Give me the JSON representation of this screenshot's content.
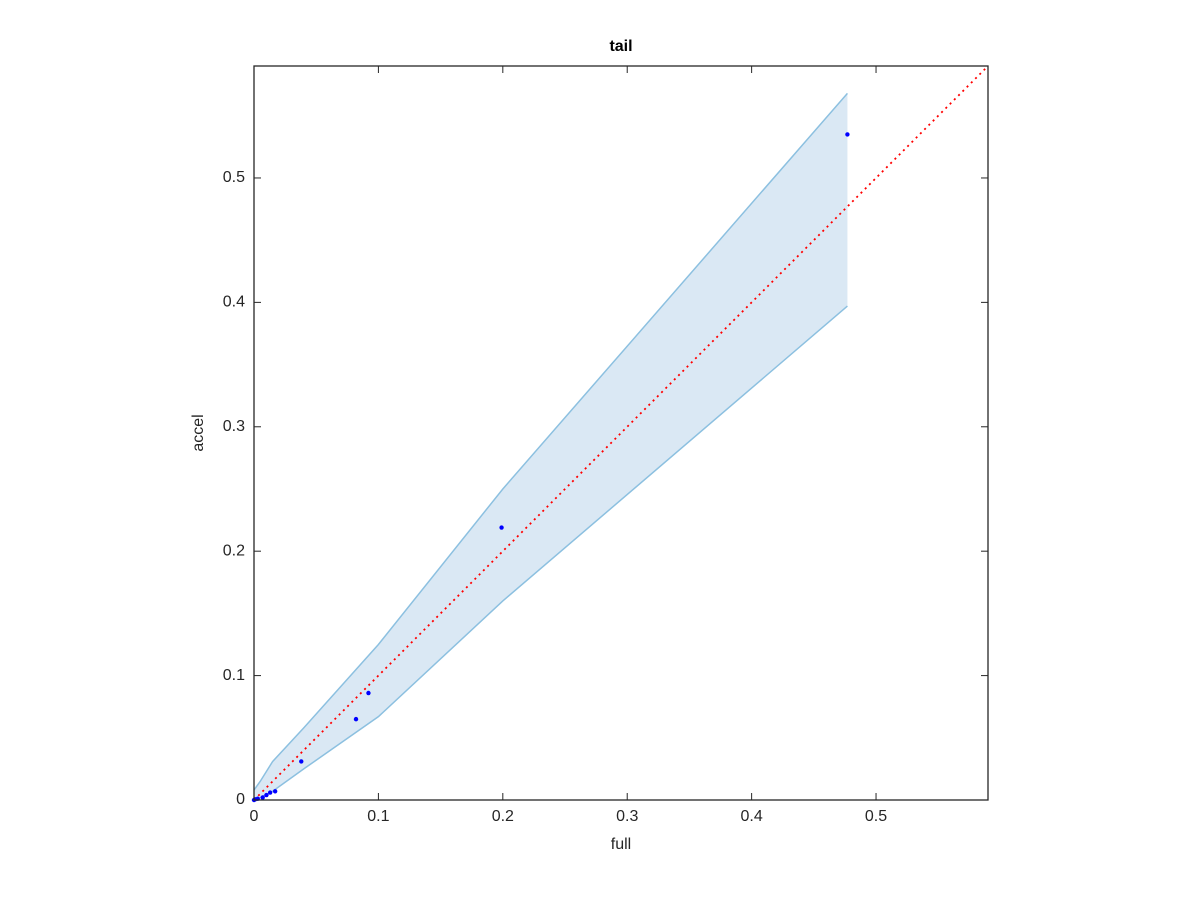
{
  "chart_data": {
    "type": "scatter",
    "title": "tail",
    "x_label": "full",
    "y_label": "accel",
    "xlim": [
      0,
      0.59
    ],
    "ylim": [
      0,
      0.59
    ],
    "xticks": [
      0,
      0.1,
      0.2,
      0.3,
      0.4,
      0.5
    ],
    "yticks": [
      0,
      0.1,
      0.2,
      0.3,
      0.4,
      0.5
    ],
    "points": {
      "color": "#0000ff",
      "x": [
        0.477,
        0.199,
        0.092,
        0.082,
        0.038,
        0.017,
        0.013,
        0.01,
        0.007,
        0.003,
        0.001,
        0
      ],
      "y": [
        0.535,
        0.219,
        0.086,
        0.065,
        0.031,
        0.007,
        0.006,
        0.004,
        0.002,
        0.001,
        0.0005,
        0
      ]
    },
    "reference_line": {
      "color": "#ff0000",
      "x": [
        0,
        0.59
      ],
      "y": [
        0,
        0.59
      ]
    },
    "band": {
      "fill": "#dae8f4",
      "edge": "#8cc0e0",
      "x": [
        0,
        0.005,
        0.015,
        0.04,
        0.1,
        0.2,
        0.477
      ],
      "upper": [
        0.008,
        0.015,
        0.031,
        0.058,
        0.125,
        0.25,
        0.568
      ],
      "lower": [
        0,
        0.002,
        0.007,
        0.025,
        0.067,
        0.16,
        0.397
      ]
    }
  }
}
